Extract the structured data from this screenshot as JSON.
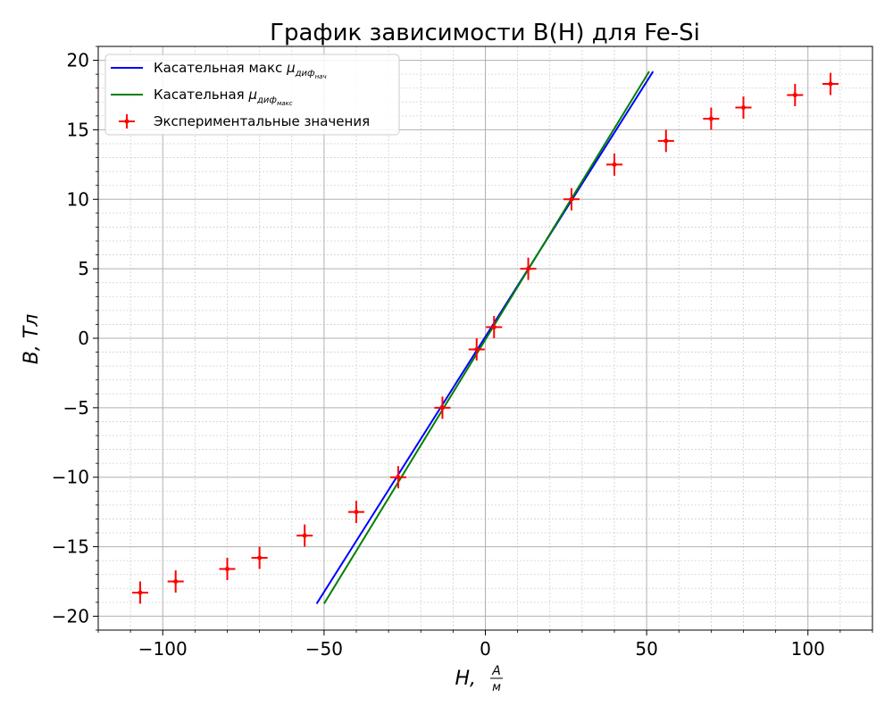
{
  "chart_data": {
    "type": "scatter",
    "title": "График зависимости B(H) для Fe-Si",
    "xlabel": {
      "main": "H,",
      "frac_num": "A",
      "frac_den": "м"
    },
    "ylabel": "B, Тл",
    "xlim": [
      -120,
      120
    ],
    "ylim": [
      -21,
      21
    ],
    "xticks": [
      -100,
      -50,
      0,
      50,
      100
    ],
    "yticks": [
      -20,
      -15,
      -10,
      -5,
      0,
      5,
      10,
      15,
      20
    ],
    "tick_labels_x": [
      "−100",
      "−50",
      "0",
      "50",
      "100"
    ],
    "tick_labels_y": [
      "−20",
      "−15",
      "−10",
      "−5",
      "0",
      "5",
      "10",
      "15",
      "20"
    ],
    "grid": {
      "major": true,
      "minor": true
    },
    "legend_position": "top-left",
    "series": [
      {
        "name": "Касательная макс μдиф нач",
        "legend_main": "Касательная макс ",
        "legend_mu": "μ",
        "legend_sub": "диф",
        "legend_subsub": "нач",
        "kind": "line",
        "color": "#0000ff",
        "x": [
          -52.3,
          52.0
        ],
        "y": [
          -19.1,
          19.2
        ]
      },
      {
        "name": "Касательная μдиф макс",
        "legend_main": "Касательная ",
        "legend_mu": "μ",
        "legend_sub": "диф",
        "legend_subsub": "макс",
        "kind": "line",
        "color": "#008000",
        "x": [
          -50.0,
          50.8
        ],
        "y": [
          -19.1,
          19.2
        ]
      },
      {
        "name": "Экспериментальные значения",
        "kind": "errorbar",
        "color": "#ff0000",
        "x": [
          -107,
          -96,
          -80,
          -70,
          -56,
          -40,
          -27,
          -13.3,
          -2.7,
          2.7,
          13.3,
          26.7,
          40,
          56,
          70,
          80,
          96,
          107
        ],
        "y": [
          -18.3,
          -17.5,
          -16.6,
          -15.8,
          -14.2,
          -12.5,
          -10.0,
          -5.0,
          -0.8,
          0.8,
          5.0,
          10.0,
          12.5,
          14.2,
          15.8,
          16.6,
          17.5,
          18.3
        ],
        "xerr": 2.5,
        "yerr": 0.8
      }
    ]
  }
}
